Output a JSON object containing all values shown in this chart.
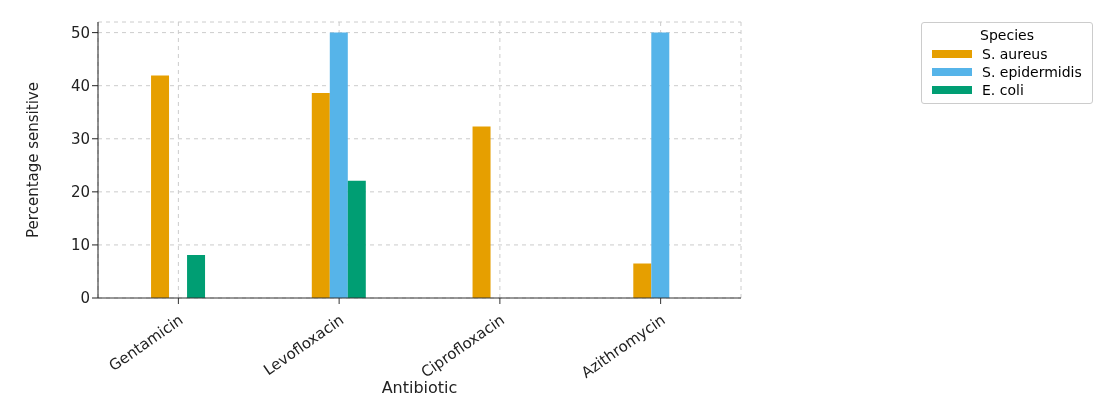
{
  "chart_data": {
    "type": "bar",
    "xlabel": "Antibiotic",
    "ylabel": "Percentage sensitive",
    "legend_title": "Species",
    "categories": [
      "Gentamicin",
      "Levofloxacin",
      "Ciprofloxacin",
      "Azithromycin"
    ],
    "series": [
      {
        "name": "S. aureus",
        "color": "#e69f00",
        "values": [
          41.9,
          38.6,
          32.3,
          6.5
        ]
      },
      {
        "name": "S. epidermidis",
        "color": "#56b4e9",
        "values": [
          0,
          50,
          0,
          50
        ]
      },
      {
        "name": "E. coli",
        "color": "#009e73",
        "values": [
          8.1,
          22.1,
          0,
          0
        ]
      }
    ],
    "ylim": [
      0,
      52
    ],
    "yticks": [
      0,
      10,
      20,
      30,
      40,
      50
    ],
    "grid": true,
    "legend": "top right"
  }
}
